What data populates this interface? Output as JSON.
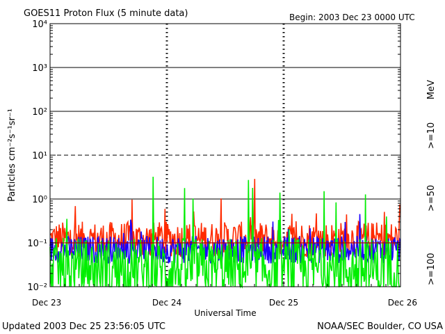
{
  "header": {
    "title": "GOES11 Proton Flux (5 minute data)",
    "begin": "Begin: 2003 Dec 23 0000 UTC"
  },
  "footer": {
    "updated": "Updated 2003 Dec 25 23:56:05 UTC",
    "credit": "NOAA/SEC Boulder, CO USA"
  },
  "chart_data": {
    "type": "line",
    "title": "GOES11 Proton Flux (5 minute data)",
    "xlabel": "Universal Time",
    "ylabel": "Particles cm⁻²s⁻¹sr⁻¹",
    "yscale": "log",
    "ylim": [
      0.01,
      10000
    ],
    "y_ticks": [
      {
        "value": 0.01,
        "label": "10⁻²"
      },
      {
        "value": 0.1,
        "label": "10⁻¹"
      },
      {
        "value": 1,
        "label": "10⁰"
      },
      {
        "value": 10,
        "label": "10¹"
      },
      {
        "value": 100,
        "label": "10²"
      },
      {
        "value": 1000,
        "label": "10³"
      },
      {
        "value": 10000,
        "label": "10⁴"
      }
    ],
    "x_ticks": [
      "Dec 23",
      "Dec 24",
      "Dec 25",
      "Dec 26"
    ],
    "grid": {
      "solid": [
        1,
        100,
        1000
      ],
      "dashed": [
        10
      ],
      "threshold": 0.1
    },
    "series_label_unit": "MeV",
    "series": [
      {
        "name": ">=10",
        "color": "#ff2a00",
        "baseline": 0.12,
        "spread": 0.9
      },
      {
        "name": ">=50",
        "color": "#1a00ff",
        "baseline": 0.07,
        "spread": 0.7
      },
      {
        "name": ">=100",
        "color": "#00ee00",
        "baseline": 0.025,
        "spread": 1.6
      }
    ]
  }
}
